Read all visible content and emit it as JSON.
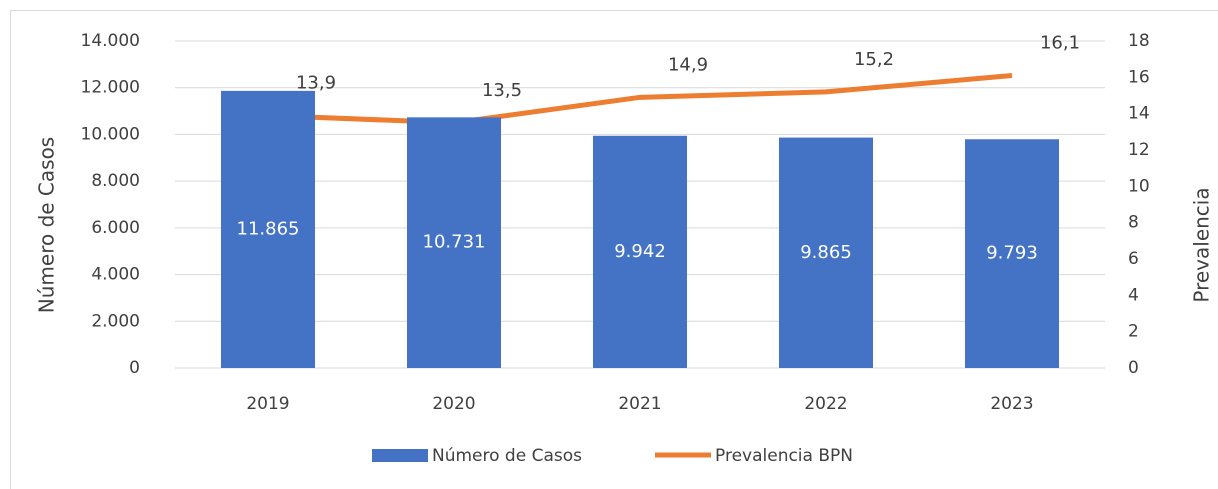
{
  "chart_data": {
    "type": "bar",
    "categories": [
      "2019",
      "2020",
      "2021",
      "2022",
      "2023"
    ],
    "series": [
      {
        "name": "Número de Casos",
        "type": "bar",
        "color": "#4472c4",
        "axis": "y",
        "values": [
          11865,
          10731,
          9942,
          9865,
          9793
        ],
        "value_labels": [
          "11.865",
          "10.731",
          "9.942",
          "9.865",
          "9.793"
        ]
      },
      {
        "name": "Prevalencia BPN",
        "type": "line",
        "color": "#ed7d31",
        "axis": "y2",
        "values": [
          13.9,
          13.5,
          14.9,
          15.2,
          16.1
        ],
        "value_labels": [
          "13,9",
          "13,5",
          "14,9",
          "15,2",
          "16,1"
        ]
      }
    ],
    "y_label": "Número de Casos",
    "y2_label": "Prevalencia",
    "ylim": [
      0,
      14000
    ],
    "yticks": [
      0,
      {
        "value": 2000,
        "label": "2.000"
      },
      {
        "value": 4000,
        "label": "4.000"
      },
      {
        "value": 6000,
        "label": "6.000"
      },
      {
        "value": 8000,
        "label": "8.000"
      },
      {
        "value": 10000,
        "label": "10.000"
      },
      {
        "value": 12000,
        "label": "12.000"
      },
      {
        "value": 14000,
        "label": "14.000"
      }
    ],
    "y2lim": [
      0,
      18
    ],
    "y2ticks": [
      0,
      2,
      4,
      6,
      8,
      10,
      12,
      14,
      16,
      18
    ],
    "grid": true,
    "legend": "bottom"
  }
}
